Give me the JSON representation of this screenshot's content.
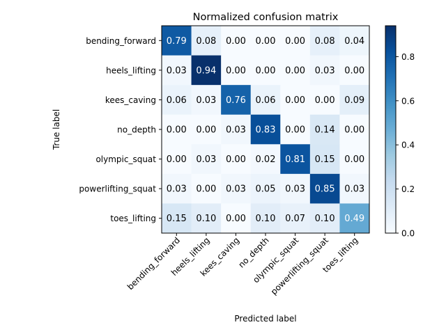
{
  "chart_data": {
    "type": "heatmap",
    "title": "Normalized confusion matrix",
    "xlabel": "Predicted label",
    "ylabel": "True label",
    "classes": [
      "bending_forward",
      "heels_lifting",
      "kees_caving",
      "no_depth",
      "olympic_squat",
      "powerlifting_squat",
      "toes_lifting"
    ],
    "matrix": [
      [
        0.79,
        0.08,
        0.0,
        0.0,
        0.0,
        0.08,
        0.04
      ],
      [
        0.03,
        0.94,
        0.0,
        0.0,
        0.0,
        0.03,
        0.0
      ],
      [
        0.06,
        0.03,
        0.76,
        0.06,
        0.0,
        0.0,
        0.09
      ],
      [
        0.0,
        0.0,
        0.03,
        0.83,
        0.0,
        0.14,
        0.0
      ],
      [
        0.0,
        0.03,
        0.0,
        0.02,
        0.81,
        0.15,
        0.0
      ],
      [
        0.03,
        0.0,
        0.03,
        0.05,
        0.03,
        0.85,
        0.03
      ],
      [
        0.15,
        0.1,
        0.0,
        0.1,
        0.07,
        0.1,
        0.49
      ]
    ],
    "colormap": "Blues",
    "colorbar": {
      "range": [
        0,
        0.94
      ],
      "ticks": [
        0.0,
        0.2,
        0.4,
        0.6,
        0.8
      ],
      "tick_labels": [
        "0.0",
        "0.2",
        "0.4",
        "0.6",
        "0.8"
      ]
    },
    "text_color_threshold": 0.47,
    "text_colors": {
      "light": "#ffffff",
      "dark": "#000000"
    }
  }
}
